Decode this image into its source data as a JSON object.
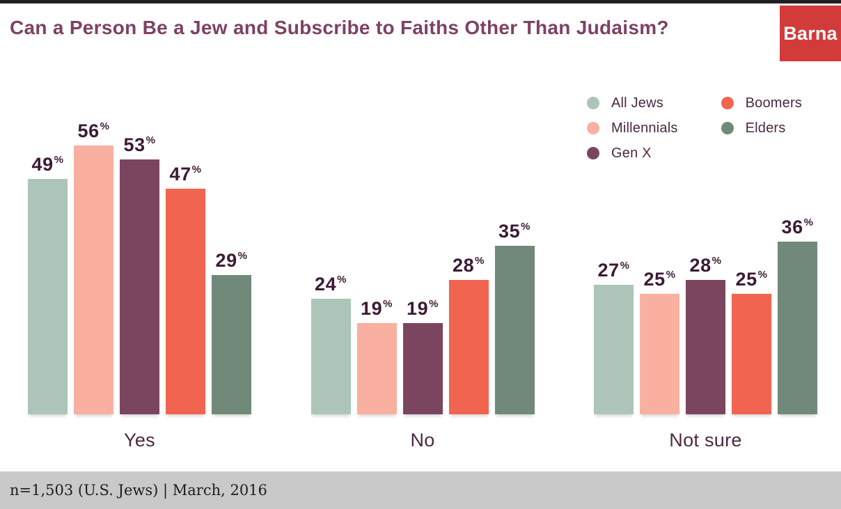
{
  "header": {
    "title": "Can a Person Be a Jew and Subscribe to Faiths Other Than Judaism?",
    "logo_text": "Barna"
  },
  "legend": {
    "position": "top-right",
    "items": [
      {
        "label": "All Jews",
        "color": "#adc5b8"
      },
      {
        "label": "Millennials",
        "color": "#f9b0a0"
      },
      {
        "label": "Gen X",
        "color": "#7b4560"
      },
      {
        "label": "Boomers",
        "color": "#f16450"
      },
      {
        "label": "Elders",
        "color": "#70897b"
      }
    ]
  },
  "chart_data": {
    "type": "bar",
    "title": "Can a Person Be a Jew and Subscribe to Faiths Other Than Judaism?",
    "categories": [
      "Yes",
      "No",
      "Not sure"
    ],
    "series": [
      {
        "name": "All Jews",
        "color": "#adc5b8",
        "values": [
          49,
          24,
          27
        ]
      },
      {
        "name": "Millennials",
        "color": "#f9b0a0",
        "values": [
          56,
          19,
          25
        ]
      },
      {
        "name": "Gen X",
        "color": "#7b4560",
        "values": [
          53,
          19,
          28
        ]
      },
      {
        "name": "Boomers",
        "color": "#f16450",
        "values": [
          47,
          28,
          25
        ]
      },
      {
        "name": "Elders",
        "color": "#70897b",
        "values": [
          29,
          35,
          36
        ]
      }
    ],
    "unit": "%",
    "data_labels": true,
    "grid": false,
    "legend_position": "top-right",
    "ylim": [
      0,
      60
    ],
    "xlabel": "",
    "ylabel": ""
  },
  "footer": {
    "note": "n=1,503 (U.S. Jews) | March, 2016"
  },
  "colors": {
    "title": "#7d4164",
    "value_label": "#3c1b34",
    "category_label": "#4c2843",
    "footer_bg": "#c9c9c9",
    "footer_text": "#1e1c1c",
    "logo_bg": "#d23b3a",
    "top_strip": "#231f20",
    "background": "#ffffff"
  }
}
